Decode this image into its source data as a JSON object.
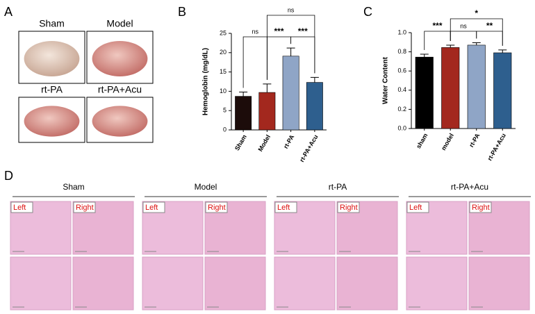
{
  "panel_labels": [
    "A",
    "B",
    "C",
    "D"
  ],
  "brain_images": [
    "Sham",
    "Model",
    "rt-PA",
    "rt-PA+Acu"
  ],
  "histology": {
    "groups": [
      "Sham",
      "Model",
      "rt-PA",
      "rt-PA+Acu"
    ],
    "sides": [
      "Left",
      "Right"
    ]
  },
  "chart_data": [
    {
      "type": "bar",
      "y_label": "Hemoglobin (mg/dL)",
      "categories": [
        "Sham",
        "Model",
        "rt-PA",
        "rt-PA+Acu"
      ],
      "values": [
        8.7,
        9.7,
        19.1,
        12.3
      ],
      "errors": [
        1.1,
        2.2,
        2.1,
        1.3
      ],
      "colors": [
        "#1c0c0a",
        "#a3281e",
        "#8fa5c6",
        "#2e5f8e"
      ],
      "ylim": [
        0,
        25
      ],
      "yticks": [
        0,
        5,
        10,
        15,
        20,
        25
      ],
      "annotations": [
        "ns",
        "ns",
        "***",
        "***"
      ]
    },
    {
      "type": "bar",
      "y_label": "Water Content",
      "categories": [
        "sham",
        "model",
        "rt-PA",
        "rt-PA+Acu"
      ],
      "values": [
        0.745,
        0.845,
        0.87,
        0.79
      ],
      "errors": [
        0.03,
        0.025,
        0.025,
        0.03
      ],
      "colors": [
        "#000000",
        "#a3281e",
        "#8fa5c6",
        "#2e5f8e"
      ],
      "ylim": [
        0,
        1
      ],
      "yticks": [
        {
          "value": 0,
          "label": "0.0"
        },
        0.2,
        0.4,
        0.6,
        0.8,
        {
          "value": 1,
          "label": "1.0"
        }
      ],
      "annotations": [
        "***",
        "ns",
        "**",
        "*"
      ]
    }
  ]
}
